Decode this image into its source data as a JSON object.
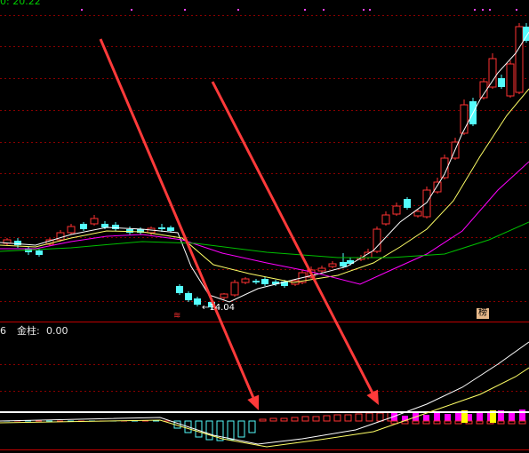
{
  "header": {
    "top_left_value": "0: 20.22"
  },
  "price_panel": {
    "low_label": "←14.04",
    "marker_left": "≋",
    "marker_right": "榜"
  },
  "indicator_panel": {
    "left_value": "6",
    "name": "金柱:",
    "value": "0.00"
  },
  "colors": {
    "up": "#ff3232",
    "down": "#54fcfc",
    "ma5": "#ffffff",
    "ma10": "#ffff66",
    "ma20": "#ff00ff",
    "ma60": "#00c000",
    "grid": "#8a0000",
    "arrow": "#ff3a3a",
    "gold": "#ffff00",
    "hist_pos": "#ff00ff"
  }
}
